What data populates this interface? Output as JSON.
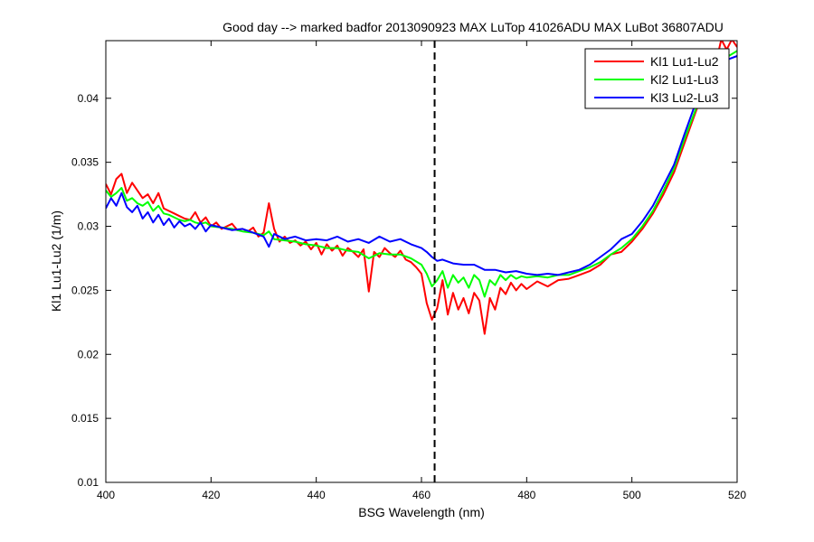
{
  "chart_data": {
    "type": "line",
    "title": "Good day --> marked badfor 2013090923  MAX LuTop 41026ADU    MAX LuBot 36807ADU",
    "xlabel": "BSG Wavelength (nm)",
    "ylabel": "Kl1 Lu1-Lu2 (1/m)",
    "xlim": [
      400,
      520
    ],
    "ylim": [
      0.01,
      0.0445
    ],
    "x_ticks": [
      400,
      420,
      440,
      460,
      480,
      500,
      520
    ],
    "x_tick_labels": [
      "400",
      "420",
      "440",
      "460",
      "480",
      "500",
      "520"
    ],
    "y_ticks": [
      0.01,
      0.015,
      0.02,
      0.025,
      0.03,
      0.035,
      0.04
    ],
    "y_tick_labels": [
      "0.01",
      "0.015",
      "0.02",
      "0.025",
      "0.03",
      "0.035",
      "0.04"
    ],
    "grid": false,
    "legend_position": "top-right",
    "vline": {
      "x": 462.5,
      "style": "dashed",
      "color": "#000000"
    },
    "series": [
      {
        "name": "Kl1 Lu1-Lu2",
        "color": "#ff0000",
        "points": [
          [
            400,
            0.0333
          ],
          [
            401,
            0.0325
          ],
          [
            402,
            0.0337
          ],
          [
            403,
            0.0341
          ],
          [
            404,
            0.0326
          ],
          [
            405,
            0.0334
          ],
          [
            406,
            0.0328
          ],
          [
            407,
            0.0322
          ],
          [
            408,
            0.0325
          ],
          [
            409,
            0.0318
          ],
          [
            410,
            0.0326
          ],
          [
            411,
            0.0314
          ],
          [
            412,
            0.0312
          ],
          [
            413,
            0.031
          ],
          [
            414,
            0.0308
          ],
          [
            415,
            0.0306
          ],
          [
            416,
            0.0305
          ],
          [
            417,
            0.0311
          ],
          [
            418,
            0.0303
          ],
          [
            419,
            0.0307
          ],
          [
            420,
            0.03
          ],
          [
            421,
            0.0303
          ],
          [
            422,
            0.0298
          ],
          [
            423,
            0.03
          ],
          [
            424,
            0.0302
          ],
          [
            425,
            0.0297
          ],
          [
            426,
            0.0298
          ],
          [
            427,
            0.0296
          ],
          [
            428,
            0.0299
          ],
          [
            429,
            0.0292
          ],
          [
            430,
            0.0295
          ],
          [
            431,
            0.0318
          ],
          [
            432,
            0.0298
          ],
          [
            433,
            0.0288
          ],
          [
            434,
            0.0292
          ],
          [
            435,
            0.0287
          ],
          [
            436,
            0.0289
          ],
          [
            437,
            0.0285
          ],
          [
            438,
            0.0288
          ],
          [
            439,
            0.0282
          ],
          [
            440,
            0.0287
          ],
          [
            441,
            0.0278
          ],
          [
            442,
            0.0286
          ],
          [
            443,
            0.0281
          ],
          [
            444,
            0.0285
          ],
          [
            445,
            0.0277
          ],
          [
            446,
            0.0283
          ],
          [
            447,
            0.028
          ],
          [
            448,
            0.0276
          ],
          [
            449,
            0.0282
          ],
          [
            450,
            0.0249
          ],
          [
            451,
            0.028
          ],
          [
            452,
            0.0276
          ],
          [
            453,
            0.0283
          ],
          [
            454,
            0.0279
          ],
          [
            455,
            0.0276
          ],
          [
            456,
            0.0281
          ],
          [
            457,
            0.0274
          ],
          [
            458,
            0.0272
          ],
          [
            459,
            0.0268
          ],
          [
            460,
            0.0263
          ],
          [
            461,
            0.024
          ],
          [
            462,
            0.0227
          ],
          [
            463,
            0.0236
          ],
          [
            464,
            0.0258
          ],
          [
            465,
            0.0231
          ],
          [
            466,
            0.0248
          ],
          [
            467,
            0.0235
          ],
          [
            468,
            0.0244
          ],
          [
            469,
            0.0232
          ],
          [
            470,
            0.0248
          ],
          [
            471,
            0.0242
          ],
          [
            472,
            0.0216
          ],
          [
            473,
            0.0244
          ],
          [
            474,
            0.0235
          ],
          [
            475,
            0.0252
          ],
          [
            476,
            0.0247
          ],
          [
            477,
            0.0256
          ],
          [
            478,
            0.025
          ],
          [
            479,
            0.0255
          ],
          [
            480,
            0.0251
          ],
          [
            482,
            0.0257
          ],
          [
            484,
            0.0253
          ],
          [
            486,
            0.0258
          ],
          [
            488,
            0.0259
          ],
          [
            490,
            0.0262
          ],
          [
            492,
            0.0265
          ],
          [
            494,
            0.027
          ],
          [
            496,
            0.0278
          ],
          [
            498,
            0.028
          ],
          [
            500,
            0.0288
          ],
          [
            502,
            0.0298
          ],
          [
            504,
            0.031
          ],
          [
            506,
            0.0325
          ],
          [
            508,
            0.0342
          ],
          [
            510,
            0.0365
          ],
          [
            512,
            0.0388
          ],
          [
            514,
            0.041
          ],
          [
            516,
            0.0428
          ],
          [
            517,
            0.0446
          ],
          [
            518,
            0.0438
          ],
          [
            519,
            0.0446
          ],
          [
            520,
            0.044
          ]
        ]
      },
      {
        "name": "Kl2 Lu1-Lu3",
        "color": "#00ff00",
        "points": [
          [
            400,
            0.0328
          ],
          [
            401,
            0.0323
          ],
          [
            402,
            0.0326
          ],
          [
            403,
            0.033
          ],
          [
            404,
            0.032
          ],
          [
            405,
            0.0322
          ],
          [
            406,
            0.0318
          ],
          [
            407,
            0.0316
          ],
          [
            408,
            0.0319
          ],
          [
            409,
            0.0312
          ],
          [
            410,
            0.0316
          ],
          [
            411,
            0.031
          ],
          [
            412,
            0.0309
          ],
          [
            413,
            0.0307
          ],
          [
            414,
            0.0305
          ],
          [
            415,
            0.0304
          ],
          [
            416,
            0.0305
          ],
          [
            417,
            0.0303
          ],
          [
            418,
            0.0302
          ],
          [
            419,
            0.0303
          ],
          [
            420,
            0.03
          ],
          [
            422,
            0.0299
          ],
          [
            424,
            0.0298
          ],
          [
            426,
            0.0296
          ],
          [
            428,
            0.0295
          ],
          [
            430,
            0.0293
          ],
          [
            431,
            0.0296
          ],
          [
            432,
            0.029
          ],
          [
            434,
            0.0289
          ],
          [
            436,
            0.0288
          ],
          [
            438,
            0.0286
          ],
          [
            440,
            0.0285
          ],
          [
            442,
            0.0283
          ],
          [
            444,
            0.0283
          ],
          [
            446,
            0.0281
          ],
          [
            448,
            0.028
          ],
          [
            450,
            0.0275
          ],
          [
            452,
            0.0279
          ],
          [
            454,
            0.0278
          ],
          [
            456,
            0.0278
          ],
          [
            458,
            0.0275
          ],
          [
            460,
            0.027
          ],
          [
            461,
            0.0263
          ],
          [
            462,
            0.0253
          ],
          [
            463,
            0.0258
          ],
          [
            464,
            0.0265
          ],
          [
            465,
            0.0252
          ],
          [
            466,
            0.0262
          ],
          [
            467,
            0.0256
          ],
          [
            468,
            0.026
          ],
          [
            469,
            0.0252
          ],
          [
            470,
            0.0262
          ],
          [
            471,
            0.0258
          ],
          [
            472,
            0.0245
          ],
          [
            473,
            0.0258
          ],
          [
            474,
            0.0254
          ],
          [
            475,
            0.0262
          ],
          [
            476,
            0.0258
          ],
          [
            477,
            0.0262
          ],
          [
            478,
            0.0259
          ],
          [
            479,
            0.0261
          ],
          [
            480,
            0.026
          ],
          [
            482,
            0.0261
          ],
          [
            484,
            0.026
          ],
          [
            486,
            0.0262
          ],
          [
            488,
            0.0262
          ],
          [
            490,
            0.0265
          ],
          [
            492,
            0.0268
          ],
          [
            494,
            0.0272
          ],
          [
            496,
            0.0278
          ],
          [
            498,
            0.0283
          ],
          [
            500,
            0.029
          ],
          [
            502,
            0.03
          ],
          [
            504,
            0.0312
          ],
          [
            506,
            0.0328
          ],
          [
            508,
            0.0345
          ],
          [
            510,
            0.0368
          ],
          [
            512,
            0.039
          ],
          [
            514,
            0.041
          ],
          [
            516,
            0.0425
          ],
          [
            518,
            0.0432
          ],
          [
            520,
            0.0437
          ]
        ]
      },
      {
        "name": "Kl3 Lu2-Lu3",
        "color": "#0000ff",
        "points": [
          [
            400,
            0.0314
          ],
          [
            401,
            0.0322
          ],
          [
            402,
            0.0316
          ],
          [
            403,
            0.0326
          ],
          [
            404,
            0.0315
          ],
          [
            405,
            0.0311
          ],
          [
            406,
            0.0316
          ],
          [
            407,
            0.0306
          ],
          [
            408,
            0.0311
          ],
          [
            409,
            0.0303
          ],
          [
            410,
            0.0309
          ],
          [
            411,
            0.0301
          ],
          [
            412,
            0.0306
          ],
          [
            413,
            0.0299
          ],
          [
            414,
            0.0304
          ],
          [
            415,
            0.03
          ],
          [
            416,
            0.0302
          ],
          [
            417,
            0.0298
          ],
          [
            418,
            0.0303
          ],
          [
            419,
            0.0296
          ],
          [
            420,
            0.0301
          ],
          [
            422,
            0.0299
          ],
          [
            424,
            0.0297
          ],
          [
            426,
            0.0298
          ],
          [
            428,
            0.0295
          ],
          [
            430,
            0.0292
          ],
          [
            431,
            0.0284
          ],
          [
            432,
            0.0294
          ],
          [
            434,
            0.029
          ],
          [
            436,
            0.0292
          ],
          [
            438,
            0.0289
          ],
          [
            440,
            0.029
          ],
          [
            442,
            0.0289
          ],
          [
            444,
            0.0292
          ],
          [
            446,
            0.0288
          ],
          [
            448,
            0.029
          ],
          [
            450,
            0.0287
          ],
          [
            452,
            0.0292
          ],
          [
            454,
            0.0288
          ],
          [
            456,
            0.029
          ],
          [
            458,
            0.0286
          ],
          [
            460,
            0.0283
          ],
          [
            461,
            0.028
          ],
          [
            462,
            0.0276
          ],
          [
            463,
            0.0273
          ],
          [
            464,
            0.0274
          ],
          [
            466,
            0.0271
          ],
          [
            468,
            0.027
          ],
          [
            470,
            0.027
          ],
          [
            472,
            0.0266
          ],
          [
            474,
            0.0266
          ],
          [
            476,
            0.0264
          ],
          [
            478,
            0.0265
          ],
          [
            480,
            0.0263
          ],
          [
            482,
            0.0262
          ],
          [
            484,
            0.0263
          ],
          [
            486,
            0.0262
          ],
          [
            488,
            0.0264
          ],
          [
            490,
            0.0266
          ],
          [
            492,
            0.027
          ],
          [
            494,
            0.0276
          ],
          [
            496,
            0.0282
          ],
          [
            498,
            0.029
          ],
          [
            500,
            0.0294
          ],
          [
            502,
            0.0304
          ],
          [
            504,
            0.0316
          ],
          [
            506,
            0.0332
          ],
          [
            508,
            0.0348
          ],
          [
            510,
            0.0372
          ],
          [
            512,
            0.0395
          ],
          [
            514,
            0.0412
          ],
          [
            516,
            0.0423
          ],
          [
            518,
            0.043
          ],
          [
            520,
            0.0433
          ]
        ]
      }
    ]
  }
}
